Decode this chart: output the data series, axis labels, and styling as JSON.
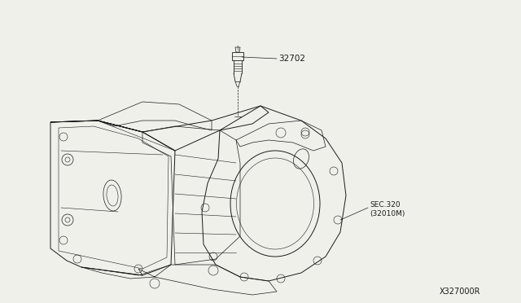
{
  "bg_color": "#f0f0eb",
  "line_color": "#1a1a1a",
  "label_32702": "32702",
  "label_sec": "SEC.320",
  "label_sec2": "(32010M)",
  "label_part_num": "X327000R",
  "fig_width": 6.4,
  "fig_height": 3.72,
  "dpi": 100
}
